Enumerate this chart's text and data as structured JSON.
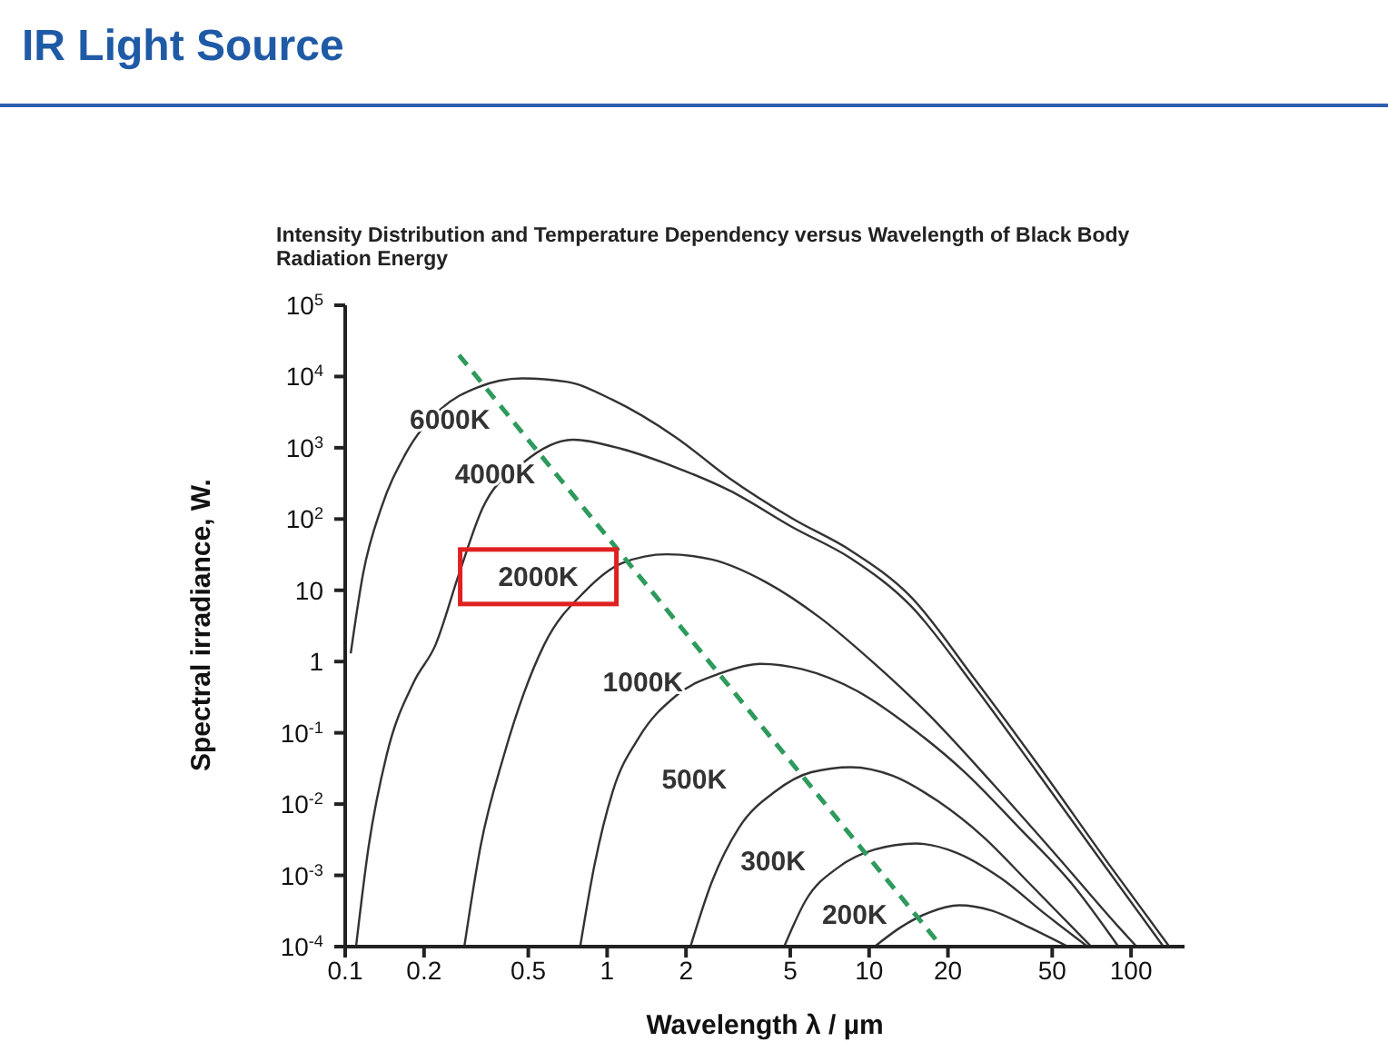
{
  "chart_data": {
    "type": "line",
    "title": "IR Light Source",
    "subtitle": "Intensity Distribution and Temperature Dependency versus Wavelength of Black Body Radiation Energy",
    "xlabel": "Wavelength λ / µm",
    "ylabel": "Spectral irradiance, W.",
    "log": "xy",
    "marker": "none",
    "xlim": [
      0.1,
      160
    ],
    "xticks": [
      0.1,
      0.2,
      0.5,
      1,
      2,
      5,
      10,
      20,
      50,
      100
    ],
    "ylim": [
      0.0001,
      100000
    ],
    "yticks": [
      {
        "value": 100000,
        "label": "10$^{5}$"
      },
      {
        "value": 10000,
        "label": "10$^{4}$"
      },
      {
        "value": 1000,
        "label": "10$^{3}$"
      },
      {
        "value": 100,
        "label": "10$^{2}$"
      },
      10,
      1,
      {
        "value": 0.1,
        "label": "10$^{-1}$"
      },
      {
        "value": 0.01,
        "label": "10$^{-2}$"
      },
      {
        "value": 0.001,
        "label": "10$^{-3}$"
      },
      {
        "value": 0.0001,
        "label": "10$^{-4}$"
      }
    ],
    "series": [
      {
        "name": "6000K",
        "color": "#333333",
        "line_style": "solid",
        "x": [
          0.105,
          0.117,
          0.137,
          0.169,
          0.232,
          0.319,
          0.474,
          0.705,
          1.05,
          1.83,
          2.94,
          5.13,
          8.53,
          14.4,
          25.1,
          43.8,
          82.7,
          140
        ],
        "values": [
          1.3,
          17,
          140,
          790,
          3500,
          7000,
          9400,
          8400,
          4700,
          1400,
          370,
          100,
          36,
          8.2,
          0.59,
          0.037,
          0.0014,
          0.0001
        ]
      },
      {
        "name": "4000K",
        "color": "#333333",
        "line_style": "solid",
        "x": [
          0.11,
          0.123,
          0.144,
          0.183,
          0.221,
          0.272,
          0.334,
          0.474,
          0.74,
          1.14,
          1.83,
          2.94,
          5.13,
          8.53,
          14.4,
          25.1,
          43.8,
          82.7,
          133
        ],
        "values": [
          0.0001,
          0.0026,
          0.049,
          0.52,
          1.7,
          17,
          140,
          600,
          1300,
          960,
          530,
          250,
          76,
          28,
          6.1,
          0.46,
          0.028,
          0.0011,
          0.0001
        ]
      },
      {
        "name": "2000K",
        "color": "#333333",
        "line_style": "solid",
        "x": [
          0.285,
          0.329,
          0.404,
          0.574,
          0.826,
          1.14,
          1.69,
          2.51,
          4.04,
          6.51,
          10.5,
          16.9,
          29.4,
          51.3,
          89.5,
          105
        ],
        "values": [
          0.0001,
          0.0026,
          0.049,
          1.7,
          9.8,
          24,
          32,
          27,
          13,
          4.1,
          0.93,
          0.18,
          0.02,
          0.002,
          0.00019,
          0.0001
        ]
      },
      {
        "name": "1000K",
        "color": "#333333",
        "line_style": "solid",
        "x": [
          0.789,
          0.895,
          1.05,
          1.33,
          1.83,
          2.72,
          3.85,
          5.56,
          8.95,
          14.4,
          23.2,
          37.3,
          60.2,
          89.5
        ],
        "values": [
          0.0001,
          0.0014,
          0.015,
          0.089,
          0.33,
          0.69,
          0.93,
          0.78,
          0.39,
          0.12,
          0.028,
          0.0047,
          0.00072,
          0.0001
        ]
      },
      {
        "name": "500K",
        "color": "#333333",
        "line_style": "solid",
        "x": [
          2.08,
          2.51,
          3.19,
          4.38,
          6.02,
          8.53,
          12.3,
          18.3,
          27.2,
          40.4,
          70.5
        ],
        "values": [
          0.0001,
          0.00081,
          0.0047,
          0.015,
          0.028,
          0.033,
          0.025,
          0.011,
          0.0035,
          0.00081,
          0.0001
        ]
      },
      {
        "name": "300K",
        "color": "#333333",
        "line_style": "solid",
        "x": [
          4.74,
          5.74,
          7.64,
          10.5,
          15.1,
          21.4,
          31.9,
          47.4,
          68.3
        ],
        "values": [
          0.0001,
          0.00045,
          0.0013,
          0.0023,
          0.0028,
          0.0021,
          0.00091,
          0.00028,
          0.0001
        ]
      },
      {
        "name": "200K",
        "color": "#333333",
        "line_style": "solid",
        "x": [
          10.5,
          13.3,
          16.9,
          22.1,
          29.4,
          40.4,
          57.4
        ],
        "values": [
          0.0001,
          0.00019,
          0.0003,
          0.00038,
          0.00032,
          0.00019,
          0.0001
        ]
      },
      {
        "color": "#2e9a5c",
        "line_style": "dashed",
        "x": [
          0.272,
          18.9
        ],
        "values": [
          20000,
          0.0001
        ]
      }
    ]
  }
}
